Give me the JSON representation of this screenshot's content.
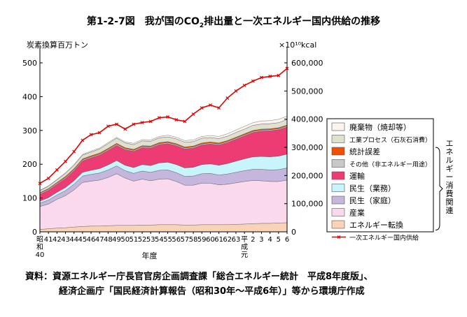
{
  "figure": {
    "title_pre": "第1-2-7図　我が国のCO",
    "title_sub": "2",
    "title_post": "排出量と一次エネルギー国内供給の推移",
    "source_line1": "資料：資源エネルギー庁長官官房企画調査課「総合エネルギー統計　平成8年度版」、",
    "source_line2": "経済企画庁「国民経済計算報告（昭和30年～平成6年）」等から環境庁作成",
    "bracket_label": "エネルギー消費関連"
  },
  "chart_data": {
    "type": "area",
    "title": "第1-2-7図　我が国のCO2排出量と一次エネルギー国内供給の推移",
    "ylabel_left": "炭素換算百万トン",
    "ylabel_right": "×10¹⁰kcal",
    "xlabel": "年度",
    "ylim_left": [
      0,
      500
    ],
    "ylim_right": [
      0,
      600000
    ],
    "yticks_left": [
      "0",
      "100",
      "200",
      "300",
      "400",
      "500"
    ],
    "yticks_right": [
      "0",
      "100,000",
      "200,000",
      "300,000",
      "400,000",
      "500,000",
      "600,000"
    ],
    "x": [
      "40",
      "41",
      "42",
      "43",
      "44",
      "45",
      "46",
      "47",
      "48",
      "49",
      "50",
      "51",
      "52",
      "53",
      "54",
      "55",
      "56",
      "57",
      "58",
      "59",
      "60",
      "61",
      "62",
      "63",
      "元",
      "2",
      "3",
      "4",
      "5",
      "6"
    ],
    "x_tick_labels": [
      "昭和40",
      "41",
      "42",
      "43",
      "44",
      "45",
      "46",
      "47",
      "48",
      "49",
      "50",
      "51",
      "52",
      "53",
      "54",
      "55",
      "56",
      "57",
      "58",
      "59",
      "60",
      "61",
      "62",
      "63",
      "平成元",
      "2",
      "3",
      "4",
      "5",
      "6"
    ],
    "series": [
      {
        "name": "エネルギー転換",
        "color": "#f9d3b8",
        "values": [
          7,
          9,
          11,
          12,
          14,
          16,
          17,
          17,
          18,
          19,
          19,
          19,
          20,
          20,
          21,
          21,
          21,
          20,
          20,
          21,
          21,
          21,
          21,
          22,
          23,
          24,
          25,
          25,
          26,
          27
        ]
      },
      {
        "name": "産業",
        "color": "#fbd9ec",
        "values": [
          68,
          73,
          85,
          95,
          110,
          130,
          133,
          136,
          143,
          153,
          140,
          131,
          136,
          131,
          135,
          136,
          128,
          118,
          118,
          123,
          123,
          118,
          120,
          123,
          126,
          128,
          126,
          124,
          123,
          126
        ]
      },
      {
        "name": "民生（家庭）",
        "color": "#c4b6dc",
        "values": [
          10,
          12,
          13,
          15,
          17,
          19,
          20,
          21,
          22,
          23,
          22,
          23,
          24,
          25,
          26,
          26,
          26,
          26,
          27,
          28,
          29,
          29,
          30,
          31,
          32,
          33,
          34,
          34,
          35,
          36
        ]
      },
      {
        "name": "民生（業務）",
        "color": "#c8f4fc",
        "values": [
          6,
          7,
          8,
          9,
          10,
          11,
          12,
          13,
          15,
          16,
          16,
          17,
          19,
          20,
          22,
          23,
          24,
          25,
          26,
          27,
          28,
          29,
          31,
          33,
          35,
          37,
          38,
          39,
          40,
          41
        ]
      },
      {
        "name": "運輸",
        "color": "#ec3c73",
        "values": [
          20,
          22,
          24,
          27,
          30,
          34,
          37,
          40,
          43,
          45,
          46,
          48,
          50,
          52,
          54,
          55,
          56,
          56,
          57,
          58,
          59,
          60,
          62,
          65,
          68,
          72,
          75,
          77,
          78,
          80
        ]
      },
      {
        "name": "その他（非エネルギー用途）",
        "color": "#c8c8c8",
        "values": [
          3,
          3,
          3,
          3,
          3,
          3,
          3,
          3,
          3,
          3,
          3,
          3,
          3,
          3,
          3,
          3,
          3,
          3,
          3,
          3,
          3,
          3,
          3,
          3,
          3,
          3,
          3,
          3,
          3,
          3
        ]
      },
      {
        "name": "統計誤差",
        "color": "#f04f00",
        "values": [
          2,
          2,
          2,
          3,
          3,
          3,
          3,
          3,
          3,
          3,
          3,
          3,
          3,
          3,
          3,
          3,
          3,
          3,
          3,
          3,
          3,
          3,
          3,
          3,
          3,
          3,
          3,
          3,
          3,
          3
        ]
      },
      {
        "name": "工業プロセス（石灰石消費）",
        "color": "#e0e0d0",
        "values": [
          6,
          7,
          8,
          9,
          10,
          11,
          11,
          12,
          14,
          15,
          14,
          14,
          14,
          14,
          14,
          14,
          14,
          14,
          13,
          14,
          13,
          13,
          13,
          14,
          14,
          15,
          15,
          15,
          15,
          16
        ]
      },
      {
        "name": "廃棄物（焼却等）",
        "color": "#fdf4ef",
        "values": [
          1,
          1,
          1,
          2,
          2,
          2,
          3,
          3,
          3,
          3,
          3,
          4,
          4,
          4,
          4,
          5,
          5,
          5,
          5,
          5,
          6,
          6,
          7,
          7,
          8,
          8,
          9,
          9,
          10,
          10
        ]
      }
    ],
    "line_series": {
      "name": "一次エネルギー国内供給",
      "color": "#e00000",
      "axis": "right",
      "values": [
        172000,
        190000,
        220000,
        250000,
        285000,
        325000,
        345000,
        352000,
        375000,
        382000,
        365000,
        382000,
        388000,
        392000,
        405000,
        408000,
        398000,
        392000,
        418000,
        440000,
        450000,
        440000,
        475000,
        500000,
        520000,
        535000,
        548000,
        552000,
        555000,
        580000
      ]
    }
  }
}
